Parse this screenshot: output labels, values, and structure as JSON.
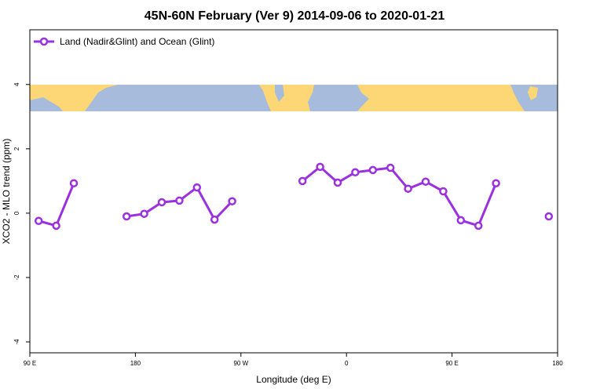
{
  "chart_data": {
    "type": "line",
    "title": "45N-60N February (Ver 9)   2014-09-06 to 2020-01-21",
    "x_label": "Longitude (deg E)",
    "y_label": "XCO2 - MLO trend (ppm)",
    "x": [
      97.5,
      112.5,
      127.5,
      142.5,
      157.5,
      172.5,
      187.5,
      202.5,
      217.5,
      232.5,
      247.5,
      262.5,
      277.5,
      292.5,
      307.5,
      322.5,
      337.5,
      352.5,
      367.5,
      382.5,
      397.5,
      412.5,
      427.5,
      442.5,
      457.5,
      472.5,
      487.5,
      502.5,
      517.5,
      532.5
    ],
    "series": [
      {
        "name": "Land (Nadir&Glint) and Ocean (Glint)",
        "color": "#9b30e0",
        "values": [
          -0.24,
          -0.39,
          0.93,
          null,
          null,
          -0.1,
          -0.02,
          0.34,
          0.39,
          0.8,
          -0.2,
          0.37,
          null,
          null,
          null,
          1.0,
          1.44,
          0.95,
          1.27,
          1.34,
          1.41,
          0.76,
          0.98,
          0.68,
          -0.22,
          -0.39,
          0.93,
          null,
          null,
          -0.1
        ]
      }
    ],
    "xlim": [
      90,
      540
    ],
    "xticks": [
      {
        "value": 90,
        "label": "90 E"
      },
      {
        "value": 180,
        "label": "180"
      },
      {
        "value": 270,
        "label": "90 W"
      },
      {
        "value": 360,
        "label": "0"
      },
      {
        "value": 450,
        "label": "90 E"
      },
      {
        "value": 540,
        "label": "180"
      }
    ],
    "ylim": [
      -4.34,
      5.7
    ],
    "yticks": [
      -4,
      -2,
      0,
      2,
      4
    ],
    "grid": false,
    "legend": "top-left"
  }
}
